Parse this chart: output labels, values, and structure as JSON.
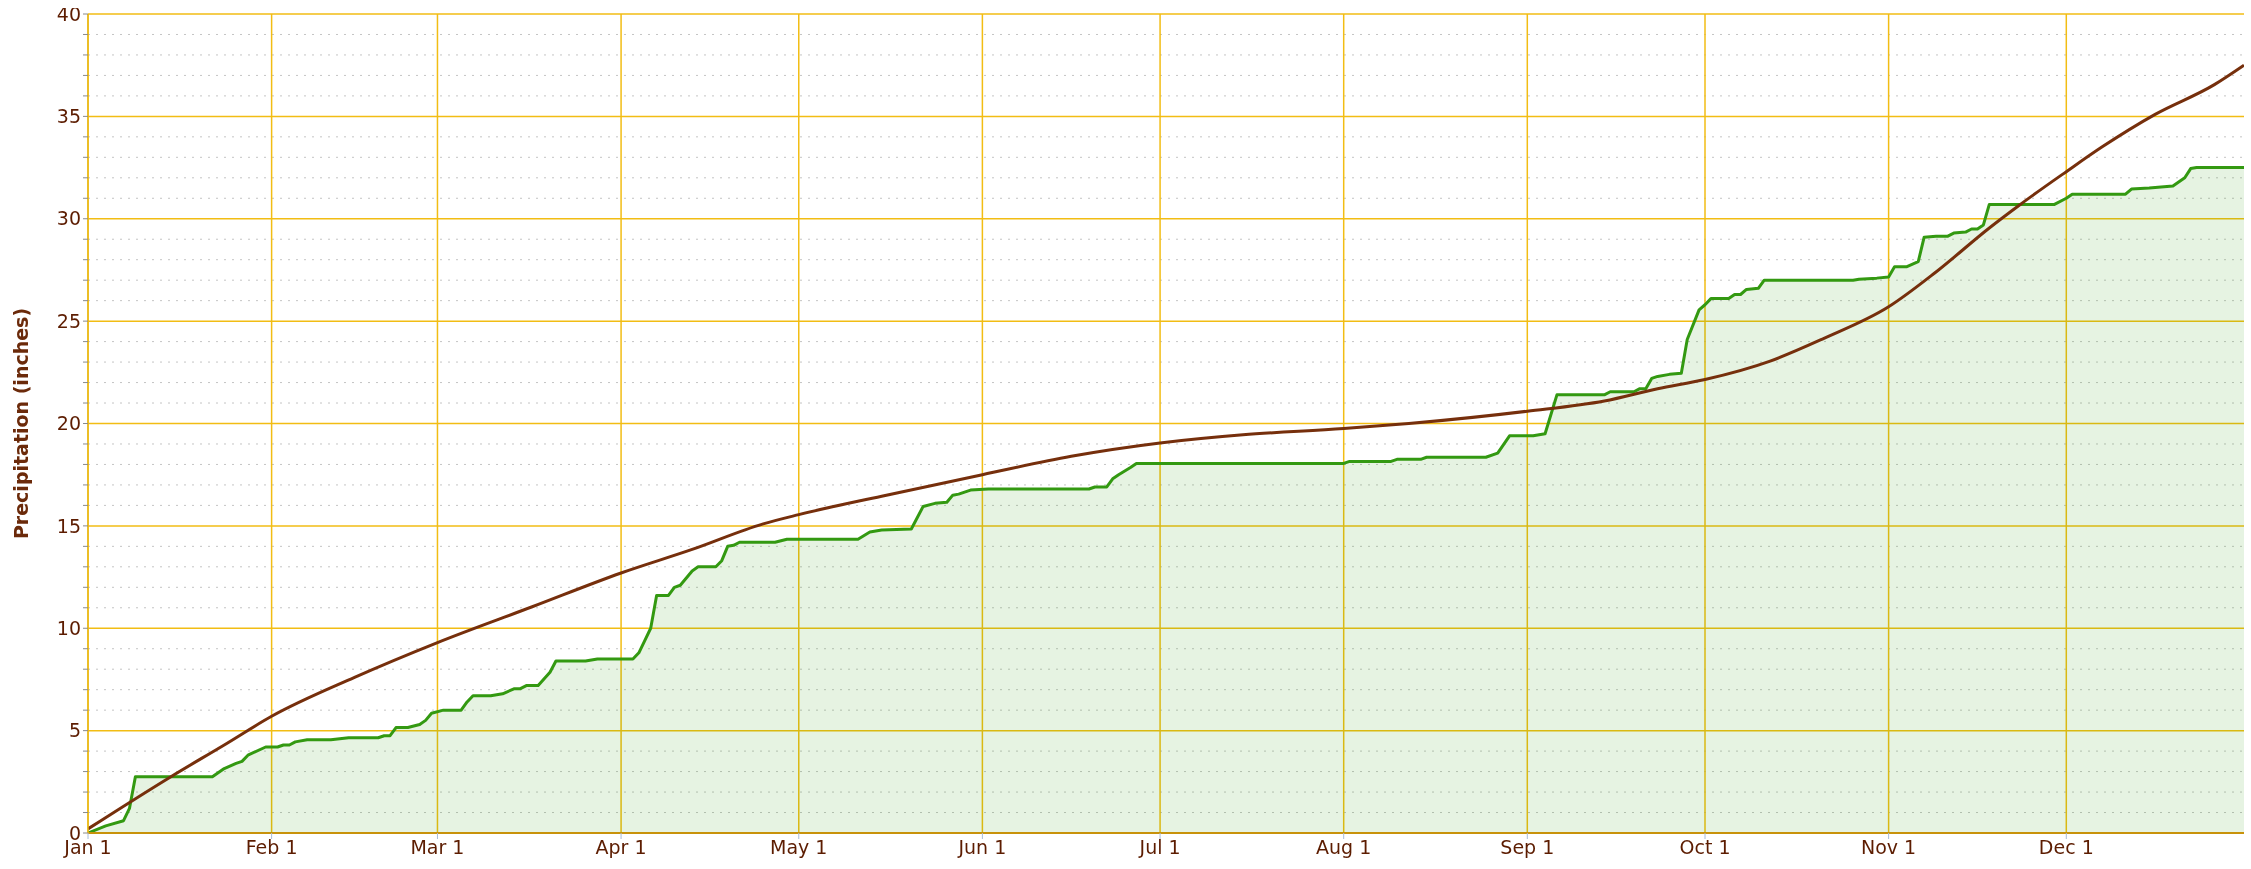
{
  "chart_data": {
    "type": "area",
    "ylabel": "Precipitation (inches)",
    "xlim": [
      "--01-01",
      "--12-31"
    ],
    "xticks": [
      {
        "value": "--01-01",
        "label": "Jan 1"
      },
      {
        "value": "--02-01",
        "label": "Feb 1"
      },
      {
        "value": "--03-01",
        "label": "Mar 1"
      },
      {
        "value": "--04-01",
        "label": "Apr 1"
      },
      {
        "value": "--05-01",
        "label": "May 1"
      },
      {
        "value": "--06-01",
        "label": "Jun 1"
      },
      {
        "value": "--07-01",
        "label": "Jul 1"
      },
      {
        "value": "--08-01",
        "label": "Aug 1"
      },
      {
        "value": "--09-01",
        "label": "Sep 1"
      },
      {
        "value": "--10-01",
        "label": "Oct 1"
      },
      {
        "value": "--11-01",
        "label": "Nov 1"
      },
      {
        "value": "--12-01",
        "label": "Dec 1"
      }
    ],
    "ylim": [
      0,
      40
    ],
    "yticks": [
      0,
      {
        "value": 1,
        "label": null
      },
      {
        "value": 2,
        "label": null
      },
      {
        "value": 3,
        "label": null
      },
      {
        "value": 4,
        "label": null
      },
      5,
      {
        "value": 6,
        "label": null
      },
      {
        "value": 7,
        "label": null
      },
      {
        "value": 8,
        "label": null
      },
      {
        "value": 9,
        "label": null
      },
      10,
      {
        "value": 11,
        "label": null
      },
      {
        "value": 12,
        "label": null
      },
      {
        "value": 13,
        "label": null
      },
      {
        "value": 14,
        "label": null
      },
      15,
      {
        "value": 16,
        "label": null
      },
      {
        "value": 17,
        "label": null
      },
      {
        "value": 18,
        "label": null
      },
      {
        "value": 19,
        "label": null
      },
      20,
      {
        "value": 21,
        "label": null
      },
      {
        "value": 22,
        "label": null
      },
      {
        "value": 23,
        "label": null
      },
      {
        "value": 24,
        "label": null
      },
      25,
      {
        "value": 26,
        "label": null
      },
      {
        "value": 27,
        "label": null
      },
      {
        "value": 28,
        "label": null
      },
      {
        "value": 29,
        "label": null
      },
      30,
      {
        "value": 31,
        "label": null
      },
      {
        "value": 32,
        "label": null
      },
      {
        "value": 33,
        "label": null
      },
      {
        "value": 34,
        "label": null
      },
      35,
      {
        "value": 36,
        "label": null
      },
      {
        "value": 37,
        "label": null
      },
      {
        "value": 38,
        "label": null
      },
      {
        "value": 39,
        "label": null
      },
      40
    ],
    "grid": true,
    "series": [
      {
        "color": "#339911",
        "x": [
          "--01-01",
          "--01-04",
          "--01-07",
          "--01-08",
          "--01-09",
          "--01-22",
          "--01-24",
          "--01-26",
          "--01-27",
          "--01-28",
          "--01-31",
          "--02-02",
          "--02-03",
          "--02-04",
          "--02-05",
          "--02-07",
          "--02-11",
          "--02-14",
          "--02-19",
          "--02-20",
          "--02-21",
          "--02-22",
          "--02-24",
          "--02-26",
          "--02-27",
          "--02-28",
          "--03-02",
          "--03-05",
          "--03-06",
          "--03-07",
          "--03-10",
          "--03-12",
          "--03-14",
          "--03-15",
          "--03-16",
          "--03-18",
          "--03-20",
          "--03-21",
          "--03-26",
          "--03-28",
          "--04-03",
          "--04-04",
          "--04-05",
          "--04-06",
          "--04-07",
          "--04-09",
          "--04-10",
          "--04-11",
          "--04-13",
          "--04-14",
          "--04-17",
          "--04-18",
          "--04-19",
          "--04-20",
          "--04-21",
          "--04-27",
          "--04-29",
          "--05-11",
          "--05-13",
          "--05-15",
          "--05-20",
          "--05-22",
          "--05-24",
          "--05-26",
          "--05-27",
          "--05-28",
          "--05-30",
          "--06-02",
          "--06-19",
          "--06-20",
          "--06-22",
          "--06-23",
          "--06-24",
          "--06-26",
          "--06-27",
          "--08-01",
          "--08-02",
          "--08-09",
          "--08-10",
          "--08-14",
          "--08-15",
          "--08-25",
          "--08-27",
          "--08-29",
          "--09-02",
          "--09-04",
          "--09-06",
          "--09-14",
          "--09-15",
          "--09-19",
          "--09-20",
          "--09-21",
          "--09-22",
          "--09-23",
          "--09-25",
          "--09-27",
          "--09-28",
          "--09-30",
          "--10-01",
          "--10-02",
          "--10-05",
          "--10-06",
          "--10-07",
          "--10-08",
          "--10-10",
          "--10-11",
          "--10-26",
          "--10-27",
          "--10-30",
          "--11-01",
          "--11-02",
          "--11-04",
          "--11-06",
          "--11-07",
          "--11-09",
          "--11-11",
          "--11-12",
          "--11-14",
          "--11-15",
          "--11-16",
          "--11-17",
          "--11-18",
          "--11-29",
          "--12-01",
          "--12-02",
          "--12-11",
          "--12-12",
          "--12-15",
          "--12-17",
          "--12-19",
          "--12-21",
          "--12-22",
          "--12-23",
          "--12-31"
        ],
        "values": [
          0,
          0.35,
          0.6,
          1.2,
          2.75,
          2.75,
          3.15,
          3.4,
          3.5,
          3.8,
          4.2,
          4.2,
          4.3,
          4.3,
          4.45,
          4.55,
          4.55,
          4.65,
          4.65,
          4.75,
          4.75,
          5.15,
          5.15,
          5.3,
          5.5,
          5.85,
          6.0,
          6.0,
          6.4,
          6.7,
          6.7,
          6.8,
          7.05,
          7.05,
          7.2,
          7.2,
          7.85,
          8.4,
          8.4,
          8.5,
          8.5,
          8.8,
          9.4,
          10.0,
          11.6,
          11.6,
          12.0,
          12.1,
          12.8,
          13.0,
          13.0,
          13.3,
          14.0,
          14.05,
          14.2,
          14.2,
          14.35,
          14.35,
          14.7,
          14.8,
          14.85,
          15.95,
          16.1,
          16.15,
          16.5,
          16.55,
          16.75,
          16.8,
          16.8,
          16.9,
          16.9,
          17.3,
          17.5,
          17.85,
          18.05,
          18.05,
          18.15,
          18.15,
          18.25,
          18.25,
          18.35,
          18.35,
          18.55,
          19.4,
          19.4,
          19.5,
          21.4,
          21.4,
          21.55,
          21.55,
          21.7,
          21.7,
          22.2,
          22.3,
          22.4,
          22.45,
          24.1,
          25.55,
          25.8,
          26.1,
          26.1,
          26.3,
          26.3,
          26.55,
          26.6,
          27.0,
          27.0,
          27.05,
          27.1,
          27.15,
          27.65,
          27.65,
          27.9,
          29.1,
          29.15,
          29.15,
          29.3,
          29.35,
          29.5,
          29.5,
          29.7,
          30.7,
          30.7,
          31.0,
          31.2,
          31.2,
          31.45,
          31.5,
          31.55,
          31.6,
          32.0,
          32.45,
          32.5,
          32.5
        ]
      },
      {
        "type": "line",
        "color": "#762f0c",
        "x": [
          "--01-01",
          "--01-15",
          "--01-24",
          "--02-01",
          "--02-15",
          "--03-01",
          "--03-17",
          "--04-01",
          "--04-13",
          "--04-25",
          "--05-01",
          "--05-15",
          "--06-01",
          "--06-16",
          "--07-01",
          "--07-15",
          "--08-01",
          "--08-12",
          "--09-01",
          "--09-14",
          "--09-23",
          "--10-01",
          "--10-12",
          "--10-21",
          "--11-01",
          "--11-09",
          "--11-18",
          "--11-23",
          "--12-01",
          "--12-07",
          "--12-16",
          "--12-26",
          "--12-31"
        ],
        "values": [
          0.2,
          2.75,
          4.3,
          5.7,
          7.6,
          9.3,
          11.05,
          12.7,
          13.85,
          15.1,
          15.55,
          16.45,
          17.5,
          18.4,
          19.05,
          19.45,
          19.75,
          20.0,
          20.6,
          21.1,
          21.7,
          22.15,
          23.05,
          24.15,
          25.7,
          27.4,
          29.55,
          30.65,
          32.3,
          33.5,
          35.1,
          36.55,
          37.5
        ]
      }
    ]
  }
}
